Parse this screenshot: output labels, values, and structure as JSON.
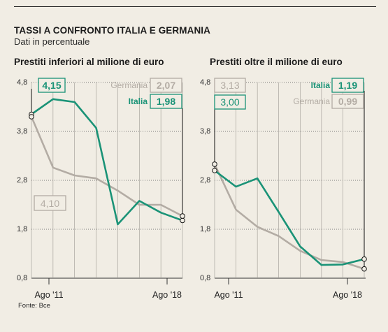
{
  "title": "TASSI A CONFRONTO ITALIA E GERMANIA",
  "subtitle": "Dati in percentuale",
  "source": "Fonte: Bce",
  "colors": {
    "italia": "#1a9377",
    "germania": "#b3aca4",
    "grid": "#7a7a7a",
    "background": "#f1ede4"
  },
  "chart_data": [
    {
      "type": "line",
      "title": "Prestiti inferiori al milione di euro",
      "ylim": [
        0.8,
        4.8
      ],
      "yticks": [
        "4,8",
        "3,8",
        "2,8",
        "1,8",
        "0,8"
      ],
      "xtick_labels": [
        "Ago '11",
        "Ago '18"
      ],
      "x": [
        0,
        1,
        2,
        3,
        4,
        5,
        6,
        7
      ],
      "series": [
        {
          "name": "Italia",
          "values": [
            4.15,
            4.46,
            4.4,
            3.87,
            1.9,
            2.38,
            2.14,
            1.98
          ]
        },
        {
          "name": "Germania",
          "values": [
            4.1,
            3.06,
            2.9,
            2.84,
            2.59,
            2.3,
            2.3,
            2.07
          ]
        }
      ],
      "labels": {
        "italia_start": "4,15",
        "germania_start": "4,10",
        "germania_end_name": "Germania",
        "germania_end": "2,07",
        "italia_end_name": "Italia",
        "italia_end": "1,98"
      }
    },
    {
      "type": "line",
      "title": "Prestiti oltre il milione di euro",
      "ylim": [
        0.8,
        4.8
      ],
      "yticks": [
        "4,8",
        "3,8",
        "2,8",
        "1,8",
        "0,8"
      ],
      "xtick_labels": [
        "Ago '11",
        "Ago '18"
      ],
      "x": [
        0,
        1,
        2,
        3,
        4,
        5,
        6,
        7
      ],
      "series": [
        {
          "name": "Italia",
          "values": [
            3.0,
            2.67,
            2.84,
            2.15,
            1.45,
            1.07,
            1.08,
            1.19
          ]
        },
        {
          "name": "Germania",
          "values": [
            3.13,
            2.2,
            1.85,
            1.66,
            1.36,
            1.17,
            1.13,
            0.99
          ]
        }
      ],
      "labels": {
        "germania_start": "3,13",
        "italia_start": "3,00",
        "italia_end_name": "Italia",
        "italia_end": "1,19",
        "germania_end_name": "Germania",
        "germania_end": "0,99"
      }
    }
  ]
}
